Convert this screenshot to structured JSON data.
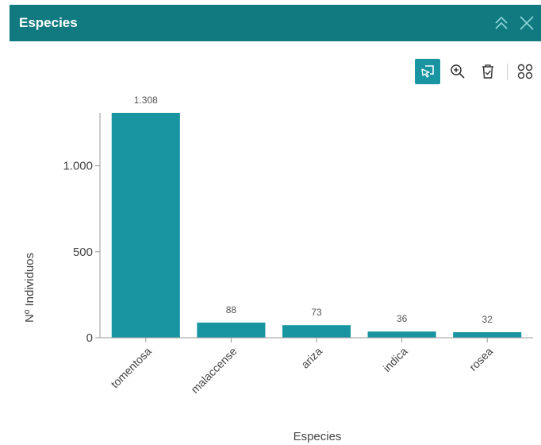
{
  "header": {
    "title": "Especies",
    "collapse_icon": "double-chevron-up-icon",
    "close_icon": "close-icon"
  },
  "toolbar": {
    "tools": [
      {
        "name": "select-tool",
        "icon": "selection-cursor-icon",
        "active": true
      },
      {
        "name": "zoom-tool",
        "icon": "zoom-in-icon",
        "active": false
      },
      {
        "name": "clear-selection-tool",
        "icon": "trash-check-icon",
        "active": false
      }
    ],
    "menu_icon": "grid-menu-icon"
  },
  "colors": {
    "header": "#117a80",
    "bar": "#1895a0",
    "active_tool": "#1895a0",
    "axis_text": "#444444",
    "data_label": "#555555"
  },
  "chart_data": {
    "type": "bar",
    "categories": [
      "tomentosa",
      "malaccense",
      "ariza",
      "indica",
      "rosea"
    ],
    "values": [
      1308,
      88,
      73,
      36,
      32
    ],
    "data_labels": [
      "1.308",
      "88",
      "73",
      "36",
      "32"
    ],
    "xlabel": "Especies",
    "ylabel": "Nº Individuos",
    "yticks": [
      0,
      500,
      1000
    ],
    "ytick_labels": [
      "0",
      "500",
      "1.000"
    ],
    "ylim": [
      0,
      1308
    ],
    "grid": false,
    "legend": "none"
  }
}
